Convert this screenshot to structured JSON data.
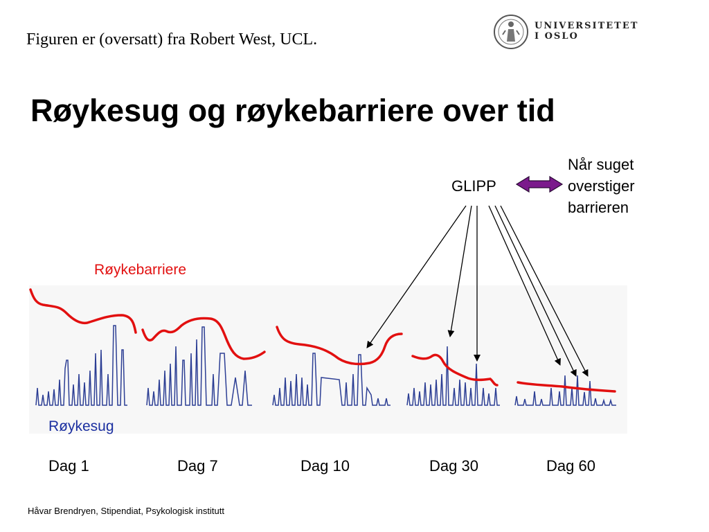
{
  "header": {
    "source_note": "Figuren er (oversatt) fra Robert West, UCL.",
    "logo": {
      "line1": "UNIVERSITETET",
      "line2": "I OSLO"
    }
  },
  "title": "Røykesug og røykebarriere over tid",
  "diagram": {
    "glipp_label": "GLIPP",
    "definition_lines": [
      "Når suget",
      "overstiger",
      "barrieren"
    ],
    "barrier_label": "Røykebarriere",
    "craving_label": "Røykesug",
    "day_labels": [
      "Dag 1",
      "Dag 7",
      "Dag 10",
      "Dag 30",
      "Dag 60"
    ],
    "colors": {
      "barrier": "#e21010",
      "craving": "#2c3e94",
      "arrow": "#7b1a8c",
      "panel": "#f7f7f7"
    }
  },
  "footer": {
    "text": "Håvar Brendryen, Stipendiat, Psykologisk institutt"
  }
}
